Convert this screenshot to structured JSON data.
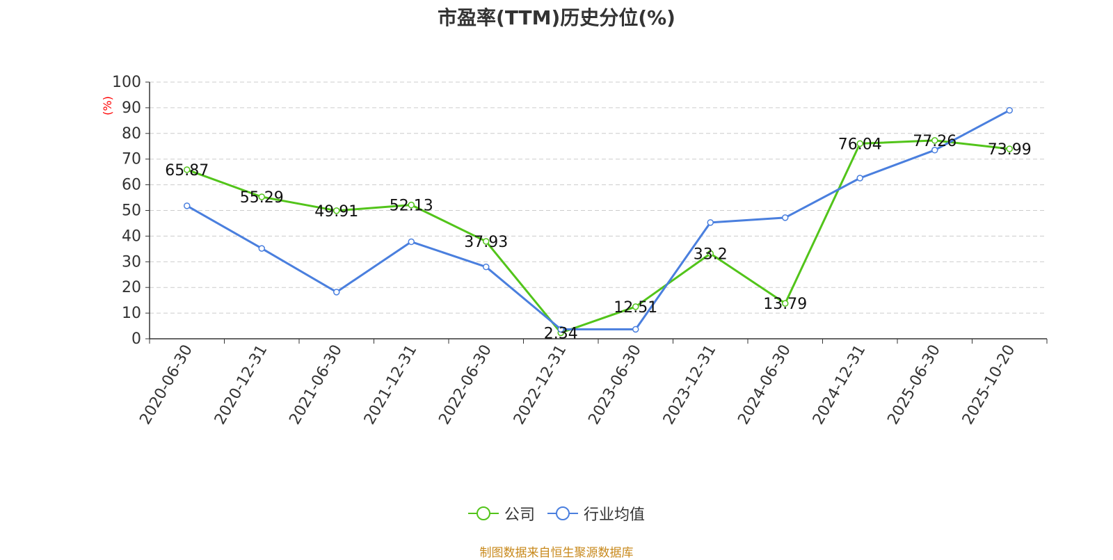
{
  "title": "市盈率(TTM)历史分位(%)",
  "source_note": "制图数据来自恒生聚源数据库",
  "colors": {
    "company": "#52c41a",
    "industry": "#4a7fde",
    "ylabel": "#ff0000",
    "source": "#c8891c"
  },
  "chart_data": {
    "type": "line",
    "x": [
      "2020-06-30",
      "2020-12-31",
      "2021-06-30",
      "2021-12-31",
      "2022-06-30",
      "2022-12-31",
      "2023-06-30",
      "2023-12-31",
      "2024-06-30",
      "2024-12-31",
      "2025-06-30",
      "2025-10-20"
    ],
    "ylabel": "(%)",
    "ylim": [
      0,
      100
    ],
    "yticks": [
      0,
      10,
      20,
      30,
      40,
      50,
      60,
      70,
      80,
      90,
      100
    ],
    "grid": true,
    "legend_position": "bottom",
    "series": [
      {
        "name": "公司",
        "color": "#52c41a",
        "values": [
          65.87,
          55.29,
          49.91,
          52.13,
          37.93,
          2.34,
          12.51,
          33.2,
          13.79,
          76.04,
          77.26,
          73.99
        ],
        "labels": [
          "65.87",
          "55.29",
          "49.91",
          "52.13",
          "37.93",
          "2.34",
          "12.51",
          "33.2",
          "13.79",
          "76.04",
          "77.26",
          "73.99"
        ]
      },
      {
        "name": "行业均值",
        "color": "#4a7fde",
        "values": [
          51.8,
          35.2,
          18.2,
          37.8,
          28.0,
          3.7,
          3.7,
          45.3,
          47.2,
          62.6,
          73.5,
          89.0
        ]
      }
    ]
  },
  "legend": [
    {
      "name": "公司",
      "color": "#52c41a"
    },
    {
      "name": "行业均值",
      "color": "#4a7fde"
    }
  ]
}
